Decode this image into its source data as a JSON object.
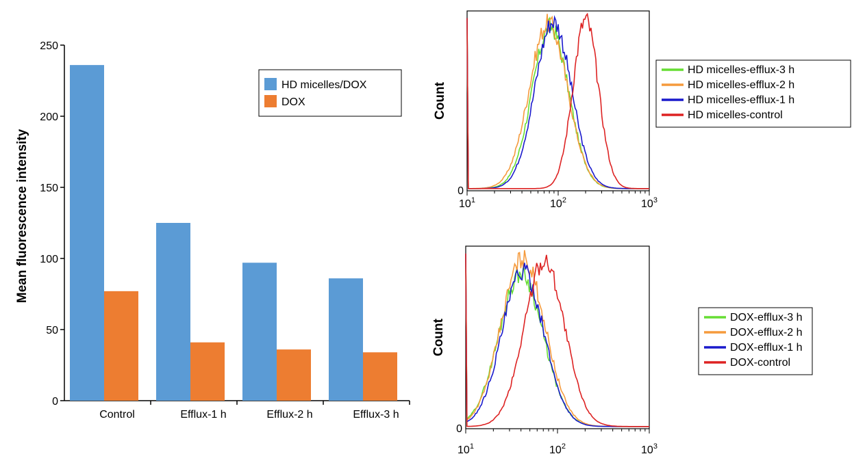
{
  "colors": {
    "blue_bar": "#5b9bd5",
    "orange_bar": "#ed7d31",
    "green": "#66dd33",
    "orange": "#f59a3c",
    "blue": "#1a1acc",
    "red": "#dd2222"
  },
  "chart_data": [
    {
      "type": "bar",
      "title": "",
      "xlabel": "",
      "ylabel": "Mean fluorescence intensity",
      "ylim": [
        0,
        250
      ],
      "yticks": [
        "0",
        "50",
        "100",
        "150",
        "200",
        "250"
      ],
      "categories": [
        "Control",
        "Efflux-1 h",
        "Efflux-2 h",
        "Efflux-3 h"
      ],
      "series": [
        {
          "name": "HD micelles/DOX",
          "values": [
            236,
            125,
            97,
            86
          ]
        },
        {
          "name": "DOX",
          "values": [
            77,
            41,
            36,
            34
          ]
        }
      ],
      "legend": "top-right"
    },
    {
      "type": "line",
      "title": "",
      "xlabel": "",
      "ylabel": "Count",
      "x_scale": "log",
      "xlim": [
        10,
        1000
      ],
      "xticks": [
        {
          "base": "10",
          "exp": "1"
        },
        {
          "base": "10",
          "exp": "2"
        },
        {
          "base": "10",
          "exp": "3"
        }
      ],
      "ylim": [
        0,
        100
      ],
      "yticks": [
        "0"
      ],
      "legend": "right",
      "series": [
        {
          "name": "HD micelles-efflux-3 h",
          "peak_x": 82,
          "peak_y": 90,
          "sigma_decades": 0.2
        },
        {
          "name": "HD micelles-efflux-2 h",
          "peak_x": 78,
          "peak_y": 92,
          "sigma_decades": 0.21
        },
        {
          "name": "HD micelles-efflux-1 h",
          "peak_x": 88,
          "peak_y": 93,
          "sigma_decades": 0.2
        },
        {
          "name": "HD micelles-control",
          "peak_x": 200,
          "peak_y": 94,
          "sigma_decades": 0.14
        }
      ]
    },
    {
      "type": "line",
      "title": "",
      "xlabel": "",
      "ylabel": "Count",
      "x_scale": "log",
      "xlim": [
        10,
        1000
      ],
      "xticks": [
        {
          "base": "10",
          "exp": "1"
        },
        {
          "base": "10",
          "exp": "2"
        },
        {
          "base": "10",
          "exp": "3"
        }
      ],
      "ylim": [
        0,
        100
      ],
      "yticks": [
        "0"
      ],
      "legend": "right",
      "series": [
        {
          "name": "DOX-efflux-3 h",
          "peak_x": 40,
          "peak_y": 84,
          "sigma_decades": 0.24
        },
        {
          "name": "DOX-efflux-2 h",
          "peak_x": 42,
          "peak_y": 92,
          "sigma_decades": 0.24
        },
        {
          "name": "DOX-efflux-1 h",
          "peak_x": 42,
          "peak_y": 85,
          "sigma_decades": 0.23
        },
        {
          "name": "DOX-control",
          "peak_x": 72,
          "peak_y": 91,
          "sigma_decades": 0.22
        }
      ]
    }
  ]
}
